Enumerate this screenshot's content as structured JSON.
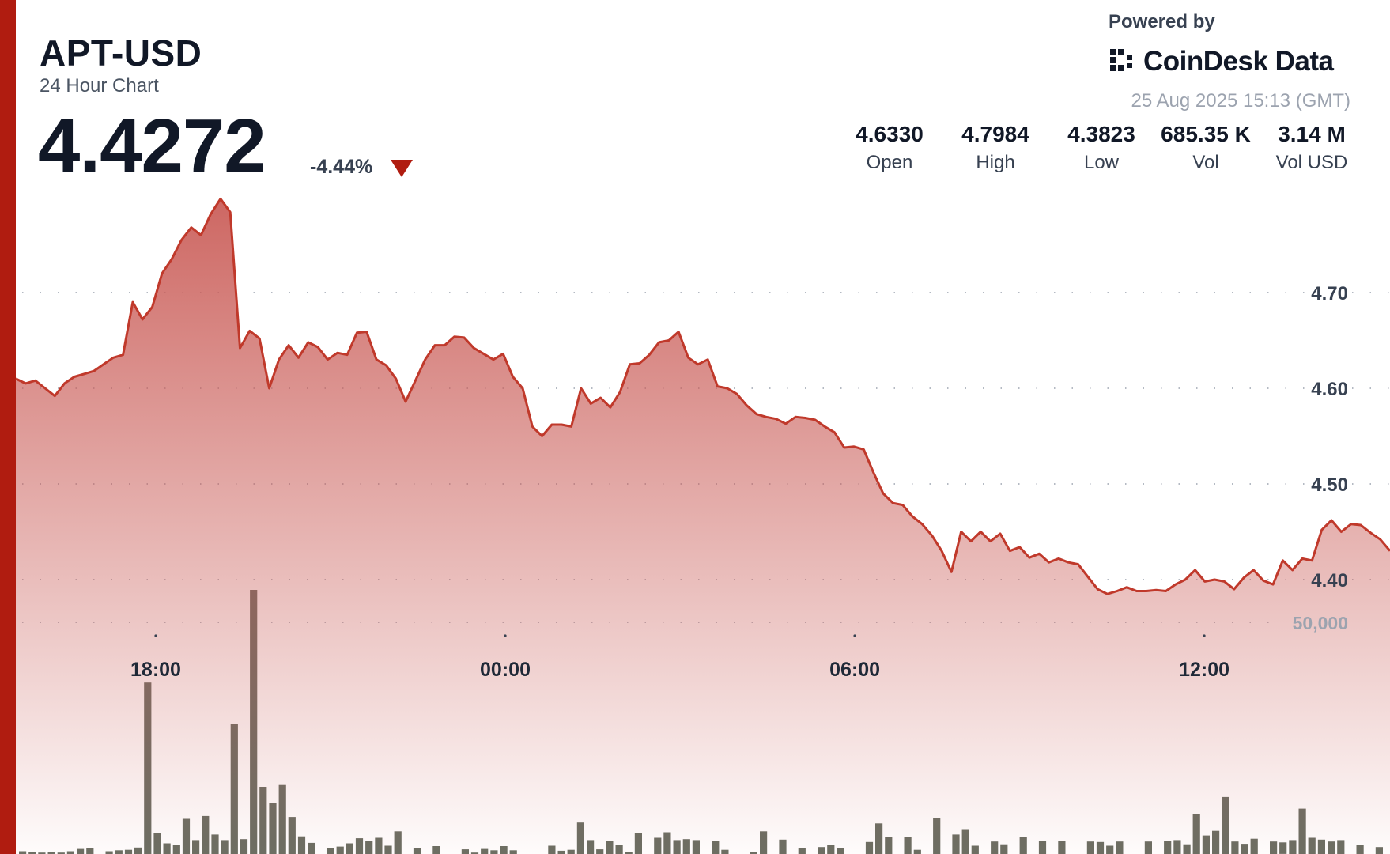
{
  "header": {
    "symbol": "APT-USD",
    "subtitle": "24 Hour Chart",
    "price": "4.4272",
    "change": "-4.44%",
    "powered_by": "Powered by",
    "brand": "CoinDesk Data",
    "timestamp": "25 Aug 2025 15:13 (GMT)"
  },
  "stats": [
    {
      "value": "4.6330",
      "label": "Open"
    },
    {
      "value": "4.7984",
      "label": "High"
    },
    {
      "value": "4.3823",
      "label": "Low"
    },
    {
      "value": "685.35 K",
      "label": "Vol"
    },
    {
      "value": "3.14 M",
      "label": "Vol USD"
    }
  ],
  "colors": {
    "accent": "#b01c10",
    "line": "#c0392b",
    "area_top": "#c95a55",
    "volume_bar": "#6b6e63",
    "down": "#b01c10"
  },
  "chart_data": {
    "type": "area",
    "x_range": [
      15.3,
      15.2
    ],
    "x_ticks": [
      {
        "label": "18:00",
        "hours": 18
      },
      {
        "label": "00:00",
        "hours": 24
      },
      {
        "label": "06:00",
        "hours": 30
      },
      {
        "label": "12:00",
        "hours": 36
      }
    ],
    "price_ticks": [
      4.4,
      4.5,
      4.6,
      4.7
    ],
    "price_tick_labels": [
      "4.40",
      "4.50",
      "4.60",
      "4.70"
    ],
    "volume_tick": 50000,
    "volume_tick_label": "50,000",
    "price_series": [
      4.61,
      4.605,
      4.608,
      4.6,
      4.592,
      4.605,
      4.612,
      4.615,
      4.618,
      4.625,
      4.632,
      4.635,
      4.69,
      4.672,
      4.685,
      4.72,
      4.735,
      4.755,
      4.768,
      4.76,
      4.782,
      4.798,
      4.784,
      4.642,
      4.66,
      4.652,
      4.6,
      4.63,
      4.645,
      4.632,
      4.648,
      4.643,
      4.63,
      4.637,
      4.635,
      4.658,
      4.659,
      4.63,
      4.624,
      4.61,
      4.586,
      4.608,
      4.63,
      4.645,
      4.645,
      4.654,
      4.653,
      4.642,
      4.636,
      4.63,
      4.636,
      4.612,
      4.6,
      4.56,
      4.55,
      4.562,
      4.562,
      4.56,
      4.6,
      4.584,
      4.59,
      4.58,
      4.596,
      4.625,
      4.626,
      4.635,
      4.648,
      4.65,
      4.659,
      4.632,
      4.625,
      4.63,
      4.602,
      4.6,
      4.594,
      4.582,
      4.573,
      4.57,
      4.568,
      4.563,
      4.57,
      4.569,
      4.567,
      4.56,
      4.554,
      4.538,
      4.539,
      4.536,
      4.512,
      4.49,
      4.48,
      4.478,
      4.466,
      4.458,
      4.446,
      4.43,
      4.408,
      4.45,
      4.44,
      4.45,
      4.44,
      4.448,
      4.43,
      4.434,
      4.423,
      4.427,
      4.418,
      4.422,
      4.418,
      4.416,
      4.403,
      4.39,
      4.385,
      4.388,
      4.392,
      4.388,
      4.388,
      4.389,
      4.388,
      4.395,
      4.4,
      4.41,
      4.398,
      4.4,
      4.398,
      4.39,
      4.402,
      4.41,
      4.399,
      4.395,
      4.42,
      4.41,
      4.422,
      4.42,
      4.452,
      4.462,
      4.45,
      4.458,
      4.457,
      4.449,
      4.442,
      4.43
    ],
    "volume_series": [
      600,
      400,
      300,
      500,
      300,
      600,
      1100,
      1200,
      0,
      600,
      800,
      900,
      1400,
      37000,
      4500,
      2300,
      2000,
      7600,
      3000,
      8200,
      4200,
      3000,
      28000,
      3200,
      57000,
      14500,
      11000,
      14900,
      8000,
      3800,
      2400,
      0,
      1300,
      1600,
      2300,
      3400,
      2800,
      3500,
      1800,
      4900,
      0,
      1300,
      0,
      1700,
      0,
      0,
      1000,
      300,
      1100,
      800,
      1700,
      800,
      0,
      0,
      0,
      1800,
      700,
      900,
      6800,
      3000,
      1000,
      2900,
      1900,
      500,
      4600,
      0,
      3500,
      4700,
      3000,
      3200,
      3000,
      0,
      2800,
      900,
      0,
      0,
      500,
      4900,
      0,
      3100,
      0,
      1300,
      0,
      1500,
      2000,
      1200,
      0,
      0,
      2600,
      6600,
      3600,
      0,
      3600,
      900,
      0,
      7800,
      0,
      4200,
      5200,
      1800,
      0,
      2700,
      2100,
      0,
      3600,
      0,
      2900,
      0,
      2800,
      0,
      0,
      2700,
      2600,
      1800,
      2700,
      0,
      0,
      2700,
      0,
      2800,
      3000,
      2100,
      8600,
      4000,
      5000,
      12300,
      2700,
      2200,
      3300,
      0,
      2700,
      2500,
      3000,
      9800,
      3500,
      3100,
      2700,
      3000,
      0,
      2000,
      0,
      1500
    ]
  }
}
